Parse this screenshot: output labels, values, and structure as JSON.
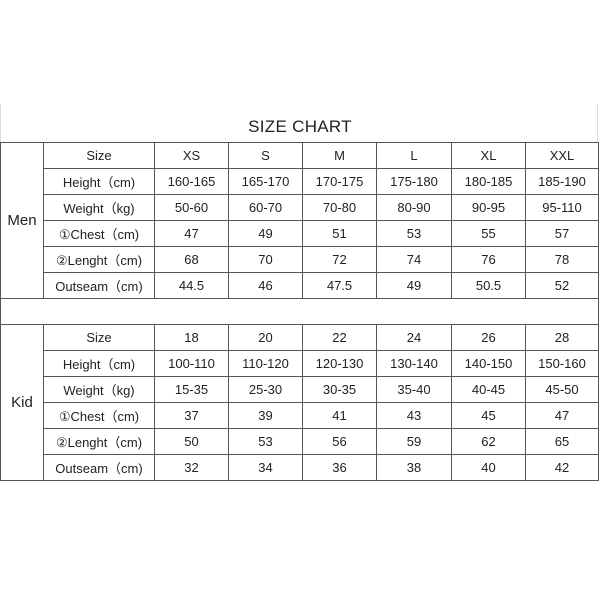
{
  "title": "SIZE CHART",
  "groups": [
    {
      "label": "Men",
      "rows": [
        {
          "label": "Size",
          "values": [
            "XS",
            "S",
            "M",
            "L",
            "XL",
            "XXL"
          ]
        },
        {
          "label": "Height（cm)",
          "values": [
            "160-165",
            "165-170",
            "170-175",
            "175-180",
            "180-185",
            "185-190"
          ]
        },
        {
          "label": "Weight（kg)",
          "values": [
            "50-60",
            "60-70",
            "70-80",
            "80-90",
            "90-95",
            "95-110"
          ]
        },
        {
          "label": "①Chest（cm)",
          "values": [
            "47",
            "49",
            "51",
            "53",
            "55",
            "57"
          ]
        },
        {
          "label": "②Lenght（cm)",
          "values": [
            "68",
            "70",
            "72",
            "74",
            "76",
            "78"
          ]
        },
        {
          "label": "Outseam（cm)",
          "values": [
            "44.5",
            "46",
            "47.5",
            "49",
            "50.5",
            "52"
          ]
        }
      ]
    },
    {
      "label": "Kid",
      "rows": [
        {
          "label": "Size",
          "values": [
            "18",
            "20",
            "22",
            "24",
            "26",
            "28"
          ]
        },
        {
          "label": "Height（cm)",
          "values": [
            "100-110",
            "110-120",
            "120-130",
            "130-140",
            "140-150",
            "150-160"
          ]
        },
        {
          "label": "Weight（kg)",
          "values": [
            "15-35",
            "25-30",
            "30-35",
            "35-40",
            "40-45",
            "45-50"
          ]
        },
        {
          "label": "①Chest（cm)",
          "values": [
            "37",
            "39",
            "41",
            "43",
            "45",
            "47"
          ]
        },
        {
          "label": "②Lenght（cm)",
          "values": [
            "50",
            "53",
            "56",
            "59",
            "62",
            "65"
          ]
        },
        {
          "label": "Outseam（cm)",
          "values": [
            "32",
            "34",
            "36",
            "38",
            "40",
            "42"
          ]
        }
      ]
    }
  ]
}
